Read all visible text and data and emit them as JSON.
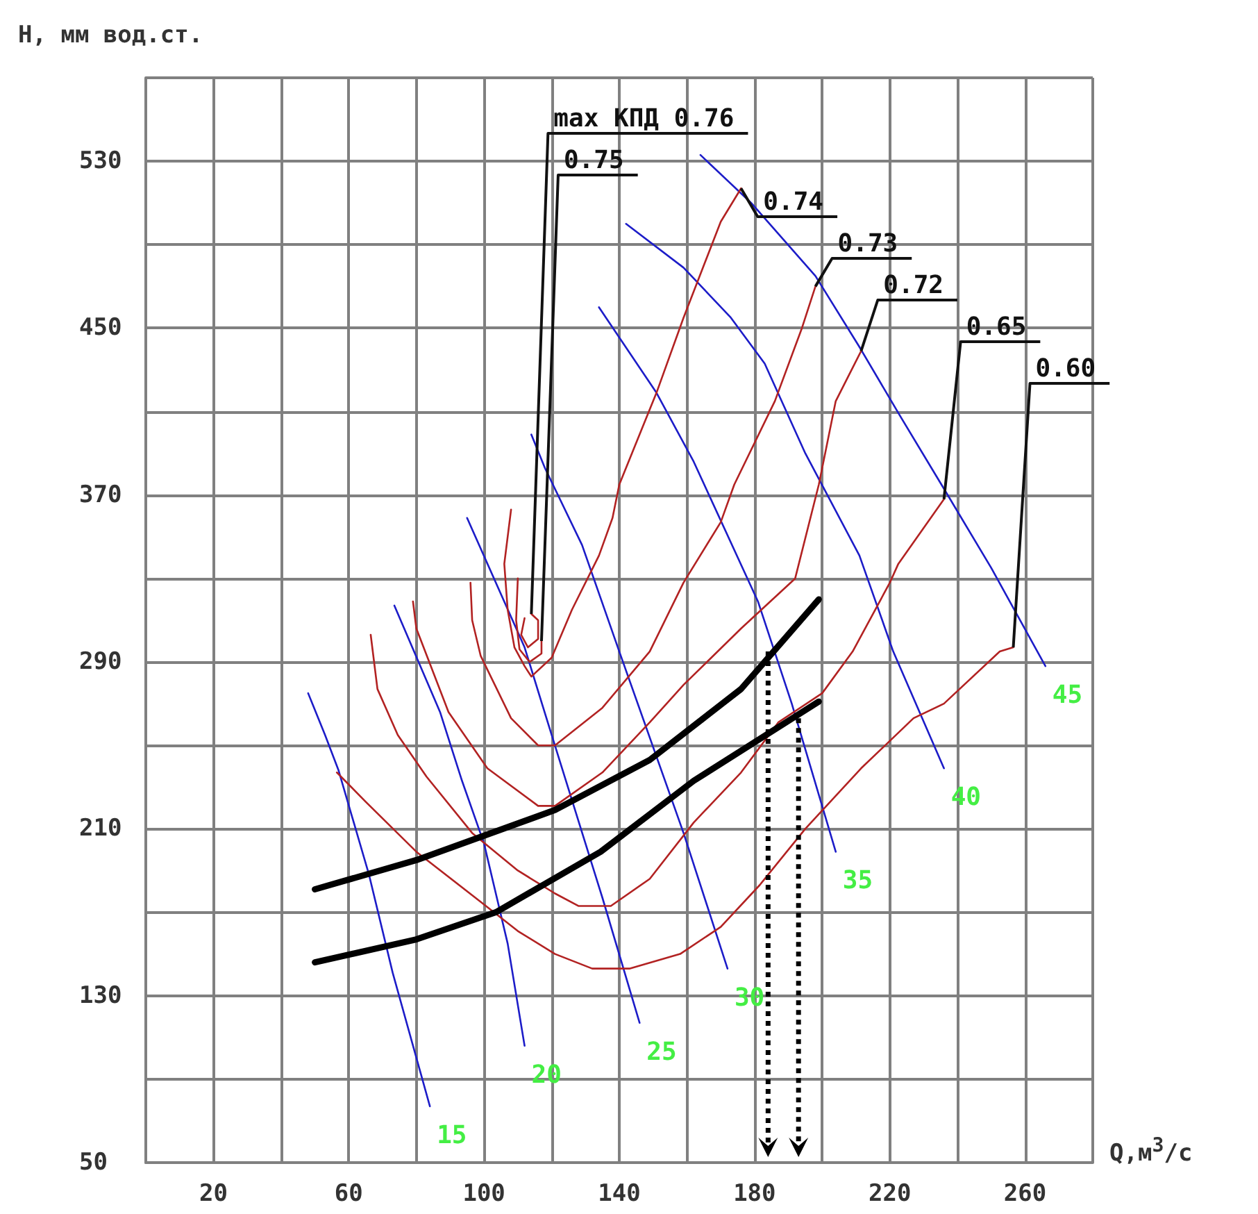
{
  "chart_data": {
    "type": "line",
    "xlabel": "Q,м$^{3}$/с",
    "ylabel": "H, мм вод.ст.",
    "xlim": [
      0,
      280
    ],
    "ylim": [
      50,
      570
    ],
    "xticks": [
      {
        "value": 0,
        "label": null
      },
      20,
      {
        "value": 40,
        "label": null
      },
      60,
      {
        "value": 80,
        "label": null
      },
      100,
      {
        "value": 120,
        "label": null
      },
      140,
      {
        "value": 160,
        "label": null
      },
      180,
      {
        "value": 200,
        "label": null
      },
      220,
      {
        "value": 240,
        "label": null
      },
      260,
      {
        "value": 280,
        "label": null
      }
    ],
    "yticks": [
      50,
      {
        "value": 90,
        "label": null
      },
      130,
      {
        "value": 170,
        "label": null
      },
      210,
      {
        "value": 250,
        "label": null
      },
      290,
      {
        "value": 330,
        "label": null
      },
      370,
      {
        "value": 410,
        "label": null
      },
      450,
      {
        "value": 490,
        "label": null
      },
      530,
      {
        "value": 570,
        "label": null
      }
    ],
    "grid": true,
    "legend": false,
    "marker": "none",
    "line_style": "solid",
    "series": [
      {
        "name": "15",
        "color": "#1c1cc8",
        "x": [
          48,
          53,
          57,
          66,
          73,
          84
        ],
        "values": [
          275,
          255,
          238,
          188,
          141,
          77
        ]
      },
      {
        "name": "20",
        "color": "#1c1cc8",
        "x": [
          73.5,
          87,
          93.5,
          100,
          107,
          112
        ],
        "values": [
          317,
          266,
          233,
          203,
          155,
          106
        ]
      },
      {
        "name": "25",
        "color": "#1c1cc8",
        "x": [
          95,
          112,
          120,
          135,
          146
        ],
        "values": [
          359,
          297,
          255,
          177,
          117
        ]
      },
      {
        "name": "30",
        "color": "#1c1cc8",
        "x": [
          114,
          118,
          129,
          140,
          159,
          172
        ],
        "values": [
          399,
          383,
          346,
          295,
          208,
          143
        ]
      },
      {
        "name": "35",
        "color": "#1c1cc8",
        "x": [
          134,
          151,
          162,
          181,
          191,
          204
        ],
        "values": [
          460,
          419,
          386,
          319,
          270,
          199
        ]
      },
      {
        "name": "40",
        "color": "#1c1cc8",
        "x": [
          142,
          159,
          173,
          183,
          195,
          211,
          221,
          236
        ],
        "values": [
          500,
          479,
          455,
          433,
          390,
          341,
          295,
          239
        ]
      },
      {
        "name": "45",
        "color": "#1c1cc8",
        "x": [
          164,
          179,
          198,
          211,
          223,
          236,
          250,
          266
        ],
        "values": [
          533,
          510,
          475,
          441,
          408,
          373,
          335,
          288
        ]
      },
      {
        "color": "#b22222",
        "x": [
          112,
          111,
          113,
          116,
          116,
          114
        ],
        "values": [
          311,
          303,
          297,
          301,
          310,
          313
        ]
      },
      {
        "color": "#b22222",
        "x": [
          110,
          109.5,
          110.5,
          113.5,
          117,
          117
        ],
        "values": [
          330,
          310,
          296,
          290,
          294,
          300
        ]
      },
      {
        "color": "#b22222",
        "x": [
          108,
          106,
          107,
          109,
          112,
          114,
          120,
          126,
          134,
          138,
          140,
          151,
          159,
          170,
          176
        ],
        "values": [
          363,
          337,
          315,
          297,
          288,
          283,
          292,
          315,
          341,
          359,
          375,
          419,
          455,
          501,
          517
        ]
      },
      {
        "color": "#b22222",
        "x": [
          96,
          96.5,
          99,
          108,
          116,
          121,
          135,
          149,
          159,
          170,
          174,
          186,
          194,
          198
        ],
        "values": [
          328,
          310,
          293,
          263,
          250,
          250,
          268,
          295,
          328,
          357,
          375,
          415,
          450,
          470
        ]
      },
      {
        "color": "#b22222",
        "x": [
          79,
          80,
          89.5,
          101,
          116,
          121,
          135,
          149,
          159,
          176,
          192,
          199,
          204,
          211.5
        ],
        "values": [
          319,
          306,
          266,
          239,
          221,
          221,
          237,
          261,
          279,
          306,
          330,
          375,
          415,
          439
        ]
      },
      {
        "color": "#b22222",
        "x": [
          66.5,
          68.5,
          74.5,
          83,
          96.5,
          110,
          121,
          128,
          137.5,
          149,
          162,
          176,
          187,
          200,
          209,
          220,
          222.5,
          236
        ],
        "values": [
          303,
          277,
          255,
          235,
          208,
          190,
          179,
          173,
          173,
          186,
          213,
          237,
          261,
          275,
          295,
          328,
          337,
          368
        ]
      },
      {
        "color": "#b22222",
        "x": [
          56.5,
          65,
          80,
          99,
          110,
          121,
          132,
          143,
          158,
          170,
          181.5,
          195,
          211.5,
          227,
          236,
          252.5,
          256.5
        ],
        "values": [
          237,
          223,
          199,
          175,
          161,
          150,
          143,
          143,
          150,
          163,
          183,
          210,
          239,
          263,
          270,
          295,
          297
        ]
      },
      {
        "color": "#000000",
        "x": [
          50,
          80,
          121,
          149,
          176,
          199
        ],
        "values": [
          181,
          195,
          219,
          243,
          277,
          320
        ]
      },
      {
        "color": "#000000",
        "x": [
          50,
          80,
          103.5,
          134.5,
          162,
          199
        ],
        "values": [
          146,
          157,
          170,
          199,
          233,
          271
        ]
      }
    ],
    "annotations": [
      {
        "text": "max КПД 0.76",
        "x": 114,
        "y": 313
      },
      {
        "text": "0.75",
        "x": 117,
        "y": 300
      },
      {
        "text": "0.74",
        "x": 176,
        "y": 517
      },
      {
        "text": "0.73",
        "x": 198,
        "y": 470
      },
      {
        "text": "0.72",
        "x": 211.5,
        "y": 439
      },
      {
        "text": "0.65",
        "x": 236,
        "y": 368
      },
      {
        "text": "0.60",
        "x": 256.5,
        "y": 297
      }
    ]
  }
}
